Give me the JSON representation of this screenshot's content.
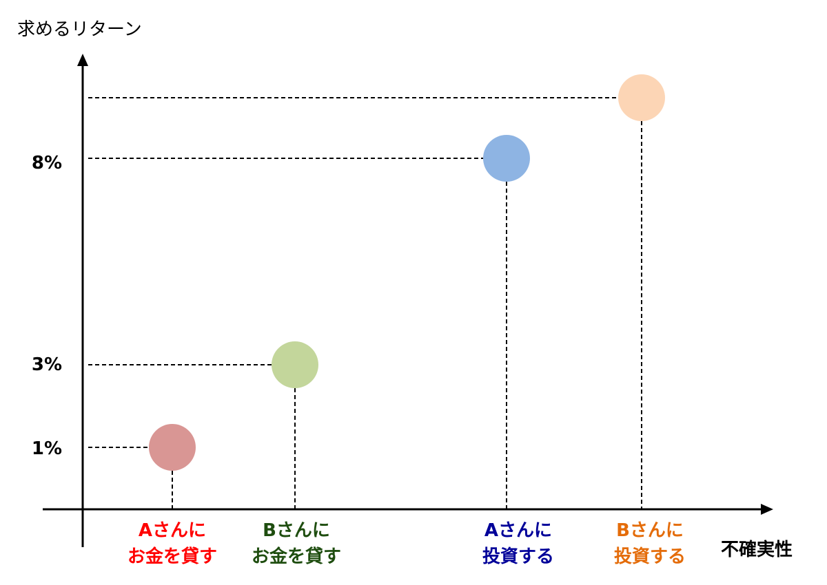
{
  "chart_data": {
    "type": "scatter",
    "ylabel": "求めるリターン",
    "xlabel": "不確実性",
    "yticks": [
      "1%",
      "3%",
      "8%"
    ],
    "grid": false,
    "points": [
      {
        "label_line1": "Aさんに",
        "label_line2": "お金を貸す",
        "y": 1,
        "color": "#d99694",
        "label_color": "#ff0000"
      },
      {
        "label_line1": "Bさんに",
        "label_line2": "お金を貸す",
        "y": 3,
        "color": "#c3d69b",
        "label_color": "#1e4d0f"
      },
      {
        "label_line1": "Aさんに",
        "label_line2": "投資する",
        "y": 8,
        "color": "#8eb4e3",
        "label_color": "#000099"
      },
      {
        "label_line1": "Bさんに",
        "label_line2": "投資する",
        "y": null,
        "color": "#fcd5b5",
        "label_color": "#e46c0a"
      }
    ]
  }
}
